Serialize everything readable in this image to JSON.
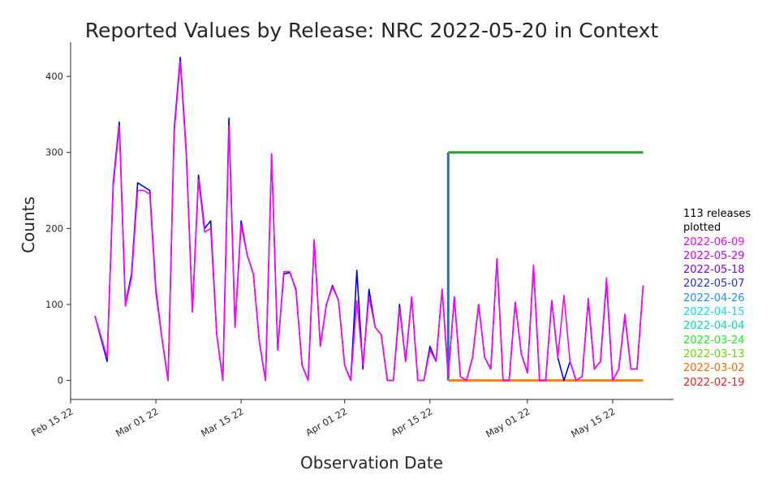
{
  "chart_data": {
    "type": "line",
    "title": "Reported Values by Release: NRC 2022-05-20 in Context",
    "xlabel": "Observation Date",
    "ylabel": "Counts",
    "x_range": [
      "2022-02-15",
      "2022-05-25"
    ],
    "ylim": [
      -25,
      445
    ],
    "grid": false,
    "legend_placement": "right",
    "x_ticks": [
      {
        "date": "2022-02-15",
        "label": "Feb 15 22"
      },
      {
        "date": "2022-03-01",
        "label": "Mar 01 22"
      },
      {
        "date": "2022-03-15",
        "label": "Mar 15 22"
      },
      {
        "date": "2022-04-01",
        "label": "Apr 01 22"
      },
      {
        "date": "2022-04-15",
        "label": "Apr 15 22"
      },
      {
        "date": "2022-05-01",
        "label": "May 01 22"
      },
      {
        "date": "2022-05-15",
        "label": "May 15 22"
      }
    ],
    "y_ticks": [
      0,
      100,
      200,
      300,
      400
    ],
    "series_styles": [
      {
        "color": "#1f77b4",
        "width": 3
      },
      {
        "color": "#2ca02c",
        "width": 3
      },
      {
        "color": "#ff7f0e",
        "width": 3
      },
      {
        "color": "#0000ff",
        "width": 1.6
      },
      {
        "color": "#ff00ff",
        "width": 1.6
      }
    ],
    "series": [
      {
        "color": "#1f77b4",
        "points": [
          [
            "2022-04-18",
            0
          ],
          [
            "2022-04-18",
            300
          ]
        ]
      },
      {
        "color": "#2ca02c",
        "points": [
          [
            "2022-04-18",
            300
          ],
          [
            "2022-05-20",
            300
          ]
        ]
      },
      {
        "color": "#ff7f0e",
        "points": [
          [
            "2022-04-18",
            0
          ],
          [
            "2022-05-20",
            0
          ]
        ]
      },
      {
        "color": "#0000ff",
        "points": [
          [
            "2022-02-19",
            85
          ],
          [
            "2022-02-21",
            25
          ],
          [
            "2022-02-22",
            260
          ],
          [
            "2022-02-23",
            340
          ],
          [
            "2022-02-24",
            100
          ],
          [
            "2022-02-25",
            140
          ],
          [
            "2022-02-26",
            260
          ],
          [
            "2022-02-27",
            255
          ],
          [
            "2022-02-28",
            250
          ],
          [
            "2022-03-01",
            120
          ],
          [
            "2022-03-02",
            55
          ],
          [
            "2022-03-03",
            0
          ],
          [
            "2022-03-04",
            330
          ],
          [
            "2022-03-05",
            425
          ],
          [
            "2022-03-06",
            300
          ],
          [
            "2022-03-07",
            90
          ],
          [
            "2022-03-08",
            270
          ],
          [
            "2022-03-09",
            200
          ],
          [
            "2022-03-10",
            210
          ],
          [
            "2022-03-11",
            60
          ],
          [
            "2022-03-12",
            0
          ],
          [
            "2022-03-13",
            345
          ],
          [
            "2022-03-14",
            70
          ],
          [
            "2022-03-15",
            210
          ],
          [
            "2022-03-16",
            165
          ],
          [
            "2022-03-17",
            140
          ],
          [
            "2022-03-18",
            50
          ],
          [
            "2022-03-19",
            0
          ],
          [
            "2022-03-20",
            298
          ],
          [
            "2022-03-21",
            40
          ],
          [
            "2022-03-22",
            140
          ],
          [
            "2022-03-23",
            142
          ],
          [
            "2022-03-24",
            120
          ],
          [
            "2022-03-25",
            20
          ],
          [
            "2022-03-26",
            0
          ],
          [
            "2022-03-27",
            185
          ],
          [
            "2022-03-28",
            45
          ],
          [
            "2022-03-29",
            100
          ],
          [
            "2022-03-30",
            125
          ],
          [
            "2022-03-31",
            105
          ],
          [
            "2022-04-01",
            20
          ],
          [
            "2022-04-02",
            0
          ],
          [
            "2022-04-03",
            145
          ],
          [
            "2022-04-04",
            15
          ],
          [
            "2022-04-05",
            120
          ],
          [
            "2022-04-06",
            70
          ],
          [
            "2022-04-07",
            60
          ],
          [
            "2022-04-08",
            0
          ],
          [
            "2022-04-09",
            0
          ],
          [
            "2022-04-10",
            100
          ],
          [
            "2022-04-11",
            25
          ],
          [
            "2022-04-12",
            110
          ],
          [
            "2022-04-13",
            0
          ],
          [
            "2022-04-14",
            0
          ],
          [
            "2022-04-15",
            45
          ],
          [
            "2022-04-16",
            25
          ],
          [
            "2022-04-17",
            120
          ],
          [
            "2022-04-18",
            5
          ],
          [
            "2022-04-19",
            110
          ],
          [
            "2022-04-20",
            5
          ],
          [
            "2022-04-21",
            0
          ],
          [
            "2022-04-22",
            30
          ],
          [
            "2022-04-23",
            100
          ],
          [
            "2022-04-24",
            30
          ],
          [
            "2022-04-25",
            15
          ],
          [
            "2022-04-26",
            160
          ],
          [
            "2022-04-27",
            0
          ],
          [
            "2022-04-28",
            0
          ],
          [
            "2022-04-29",
            103
          ],
          [
            "2022-04-30",
            35
          ],
          [
            "2022-05-01",
            10
          ],
          [
            "2022-05-02",
            150
          ],
          [
            "2022-05-03",
            0
          ],
          [
            "2022-05-04",
            0
          ],
          [
            "2022-05-05",
            105
          ],
          [
            "2022-05-06",
            30
          ],
          [
            "2022-05-07",
            0
          ],
          [
            "2022-05-08",
            25
          ],
          [
            "2022-05-09",
            0
          ],
          [
            "2022-05-10",
            5
          ],
          [
            "2022-05-11",
            105
          ],
          [
            "2022-05-12",
            15
          ],
          [
            "2022-05-13",
            25
          ],
          [
            "2022-05-14",
            130
          ],
          [
            "2022-05-15",
            0
          ],
          [
            "2022-05-16",
            15
          ],
          [
            "2022-05-17",
            85
          ],
          [
            "2022-05-18",
            15
          ],
          [
            "2022-05-19",
            15
          ],
          [
            "2022-05-20",
            125
          ]
        ]
      },
      {
        "color": "#ff00ff",
        "points": [
          [
            "2022-02-19",
            85
          ],
          [
            "2022-02-21",
            30
          ],
          [
            "2022-02-22",
            255
          ],
          [
            "2022-02-23",
            335
          ],
          [
            "2022-02-24",
            98
          ],
          [
            "2022-02-25",
            135
          ],
          [
            "2022-02-26",
            250
          ],
          [
            "2022-02-27",
            250
          ],
          [
            "2022-02-28",
            245
          ],
          [
            "2022-03-01",
            115
          ],
          [
            "2022-03-02",
            55
          ],
          [
            "2022-03-03",
            0
          ],
          [
            "2022-03-04",
            325
          ],
          [
            "2022-03-05",
            420
          ],
          [
            "2022-03-06",
            295
          ],
          [
            "2022-03-07",
            90
          ],
          [
            "2022-03-08",
            265
          ],
          [
            "2022-03-09",
            195
          ],
          [
            "2022-03-10",
            200
          ],
          [
            "2022-03-11",
            60
          ],
          [
            "2022-03-12",
            0
          ],
          [
            "2022-03-13",
            335
          ],
          [
            "2022-03-14",
            70
          ],
          [
            "2022-03-15",
            205
          ],
          [
            "2022-03-16",
            165
          ],
          [
            "2022-03-17",
            140
          ],
          [
            "2022-03-18",
            50
          ],
          [
            "2022-03-19",
            0
          ],
          [
            "2022-03-20",
            298
          ],
          [
            "2022-03-21",
            40
          ],
          [
            "2022-03-22",
            143
          ],
          [
            "2022-03-23",
            143
          ],
          [
            "2022-03-24",
            118
          ],
          [
            "2022-03-25",
            20
          ],
          [
            "2022-03-26",
            0
          ],
          [
            "2022-03-27",
            185
          ],
          [
            "2022-03-28",
            45
          ],
          [
            "2022-03-29",
            100
          ],
          [
            "2022-03-30",
            123
          ],
          [
            "2022-03-31",
            105
          ],
          [
            "2022-04-01",
            20
          ],
          [
            "2022-04-02",
            0
          ],
          [
            "2022-04-03",
            105
          ],
          [
            "2022-04-04",
            20
          ],
          [
            "2022-04-05",
            110
          ],
          [
            "2022-04-06",
            70
          ],
          [
            "2022-04-07",
            60
          ],
          [
            "2022-04-08",
            0
          ],
          [
            "2022-04-09",
            0
          ],
          [
            "2022-04-10",
            95
          ],
          [
            "2022-04-11",
            25
          ],
          [
            "2022-04-12",
            110
          ],
          [
            "2022-04-13",
            0
          ],
          [
            "2022-04-14",
            0
          ],
          [
            "2022-04-15",
            40
          ],
          [
            "2022-04-16",
            25
          ],
          [
            "2022-04-17",
            120
          ],
          [
            "2022-04-18",
            5
          ],
          [
            "2022-04-19",
            110
          ],
          [
            "2022-04-20",
            5
          ],
          [
            "2022-04-21",
            0
          ],
          [
            "2022-04-22",
            30
          ],
          [
            "2022-04-23",
            100
          ],
          [
            "2022-04-24",
            30
          ],
          [
            "2022-04-25",
            15
          ],
          [
            "2022-04-26",
            160
          ],
          [
            "2022-04-27",
            0
          ],
          [
            "2022-04-28",
            0
          ],
          [
            "2022-04-29",
            103
          ],
          [
            "2022-04-30",
            35
          ],
          [
            "2022-05-01",
            10
          ],
          [
            "2022-05-02",
            152
          ],
          [
            "2022-05-03",
            0
          ],
          [
            "2022-05-04",
            0
          ],
          [
            "2022-05-05",
            105
          ],
          [
            "2022-05-06",
            30
          ],
          [
            "2022-05-07",
            112
          ],
          [
            "2022-05-08",
            25
          ],
          [
            "2022-05-09",
            0
          ],
          [
            "2022-05-10",
            5
          ],
          [
            "2022-05-11",
            108
          ],
          [
            "2022-05-12",
            15
          ],
          [
            "2022-05-13",
            25
          ],
          [
            "2022-05-14",
            135
          ],
          [
            "2022-05-15",
            0
          ],
          [
            "2022-05-16",
            15
          ],
          [
            "2022-05-17",
            87
          ],
          [
            "2022-05-18",
            15
          ],
          [
            "2022-05-19",
            15
          ],
          [
            "2022-05-20",
            125
          ]
        ]
      }
    ],
    "legend": {
      "header_line1": "113 releases",
      "header_line2": "plotted",
      "entries": [
        {
          "label": "2022-06-09",
          "color": "#ff00ff"
        },
        {
          "label": "2022-05-29",
          "color": "#cc00ff"
        },
        {
          "label": "2022-05-18",
          "color": "#7f00ff"
        },
        {
          "label": "2022-05-07",
          "color": "#1f2ee8"
        },
        {
          "label": "2022-04-26",
          "color": "#1e90ff"
        },
        {
          "label": "2022-04-15",
          "color": "#00e5ee"
        },
        {
          "label": "2022-04-04",
          "color": "#00e5a0"
        },
        {
          "label": "2022-03-24",
          "color": "#22ee22"
        },
        {
          "label": "2022-03-13",
          "color": "#66dd00"
        },
        {
          "label": "2022-03-02",
          "color": "#ff6600"
        },
        {
          "label": "2022-02-19",
          "color": "#ff1a1a"
        }
      ]
    }
  }
}
